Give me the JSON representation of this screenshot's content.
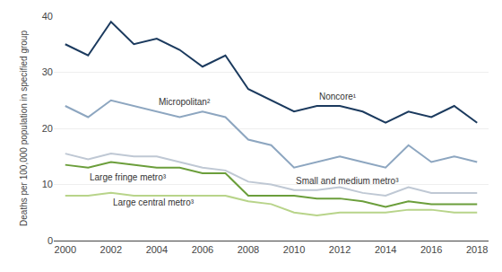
{
  "chart_data": {
    "type": "line",
    "x": [
      2000,
      2001,
      2002,
      2003,
      2004,
      2005,
      2006,
      2007,
      2008,
      2009,
      2010,
      2011,
      2012,
      2013,
      2014,
      2015,
      2016,
      2017,
      2018
    ],
    "series": [
      {
        "name": "Noncore¹",
        "color": "#1b3a5e",
        "values": [
          35,
          33,
          39,
          35,
          36,
          34,
          31,
          33,
          27,
          25,
          23,
          24,
          24,
          23,
          21,
          23,
          22,
          24,
          21
        ]
      },
      {
        "name": "Micropolitan²",
        "color": "#8da6c0",
        "values": [
          24,
          22,
          25,
          24,
          23,
          22,
          23,
          22,
          18,
          17,
          13,
          14,
          15,
          14,
          13,
          17,
          14,
          15,
          14
        ]
      },
      {
        "name": "Small and medium metro³",
        "color": "#bfc8d4",
        "values": [
          15.5,
          14.5,
          15.5,
          15,
          15,
          14,
          13,
          12.5,
          10.5,
          10,
          9,
          9,
          9.5,
          8.5,
          8,
          9.5,
          8.5,
          8.5,
          8.5
        ]
      },
      {
        "name": "Large fringe metro³",
        "color": "#6b9e3b",
        "values": [
          13.5,
          13,
          14,
          13.5,
          13,
          13,
          12,
          12,
          8,
          8,
          8,
          7.5,
          7.5,
          7,
          6,
          7,
          6.5,
          6.5,
          6.5
        ]
      },
      {
        "name": "Large central metro³",
        "color": "#b8d48a",
        "values": [
          8,
          8,
          8.5,
          8,
          8,
          8,
          8,
          8,
          7,
          6.5,
          5,
          4.5,
          5,
          5,
          5,
          5.5,
          5.5,
          5,
          5
        ]
      }
    ],
    "ylabel": "Deaths per 100,000 population in specified group",
    "xlim": [
      1999.5,
      2018.5
    ],
    "xticks": [
      2000,
      2002,
      2004,
      2006,
      2008,
      2010,
      2012,
      2014,
      2016,
      2018
    ],
    "ylim": [
      0,
      40
    ],
    "yticks": [
      0,
      10,
      20,
      30,
      40
    ],
    "grid": true
  }
}
